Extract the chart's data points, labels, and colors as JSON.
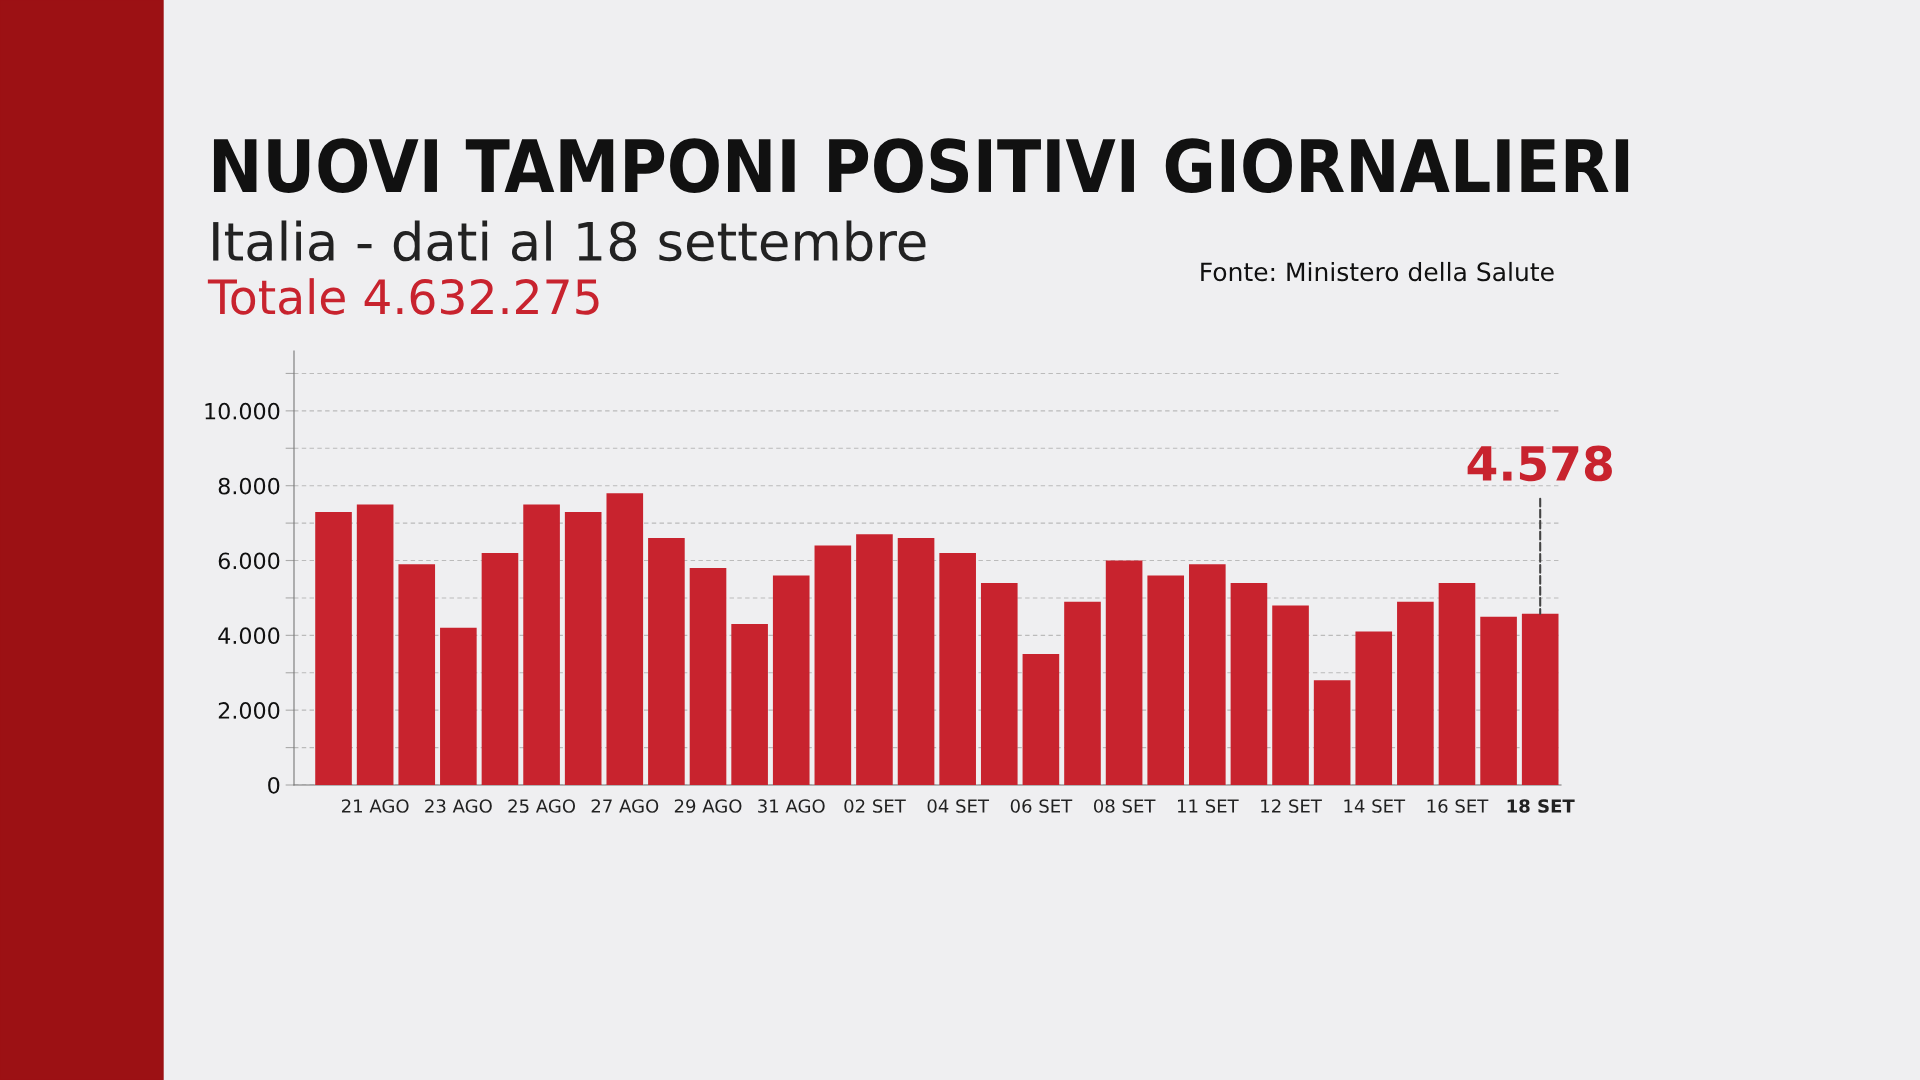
{
  "chart_data": {
    "type": "bar",
    "title": "NUOVI TAMPONI POSITIVI GIORNALIERI",
    "subtitle": "Italia - dati al 18 settembre",
    "annotations": [
      "Totale 4.632.275",
      "Fonte: Ministero della Salute",
      {
        "text": "4.578",
        "x": "18 SET",
        "y": 4578
      }
    ],
    "categories": [
      null,
      "21 AGO",
      null,
      "23 AGO",
      null,
      "25 AGO",
      null,
      "27 AGO",
      null,
      "29 AGO",
      null,
      "31 AGO",
      null,
      "02 SET",
      null,
      "04 SET",
      null,
      "06 SET",
      null,
      "08 SET",
      null,
      "11 SET",
      null,
      "12 SET",
      null,
      "14 SET",
      null,
      "16 SET",
      null,
      "18 SET"
    ],
    "values": [
      7300,
      7500,
      5900,
      4200,
      6200,
      7500,
      7300,
      7800,
      6600,
      5800,
      4300,
      5600,
      6400,
      6700,
      6600,
      6200,
      5400,
      3500,
      4900,
      6000,
      5600,
      5900,
      5400,
      4800,
      2800,
      4100,
      4900,
      5400,
      4500,
      4578
    ],
    "color": "#c8232e",
    "ylim": [
      0,
      11600
    ],
    "yticks": [
      0,
      {
        "value": 1000,
        "label": null
      },
      {
        "value": 2000,
        "label": "2.000"
      },
      {
        "value": 3000,
        "label": null
      },
      {
        "value": 4000,
        "label": "4.000"
      },
      {
        "value": 5000,
        "label": null
      },
      {
        "value": 6000,
        "label": "6.000"
      },
      {
        "value": 7000,
        "label": null
      },
      {
        "value": 8000,
        "label": "8.000"
      },
      {
        "value": 9000,
        "label": null
      },
      {
        "value": 10000,
        "label": "10.000"
      },
      {
        "value": 11000,
        "label": null
      }
    ],
    "grid": "y"
  }
}
